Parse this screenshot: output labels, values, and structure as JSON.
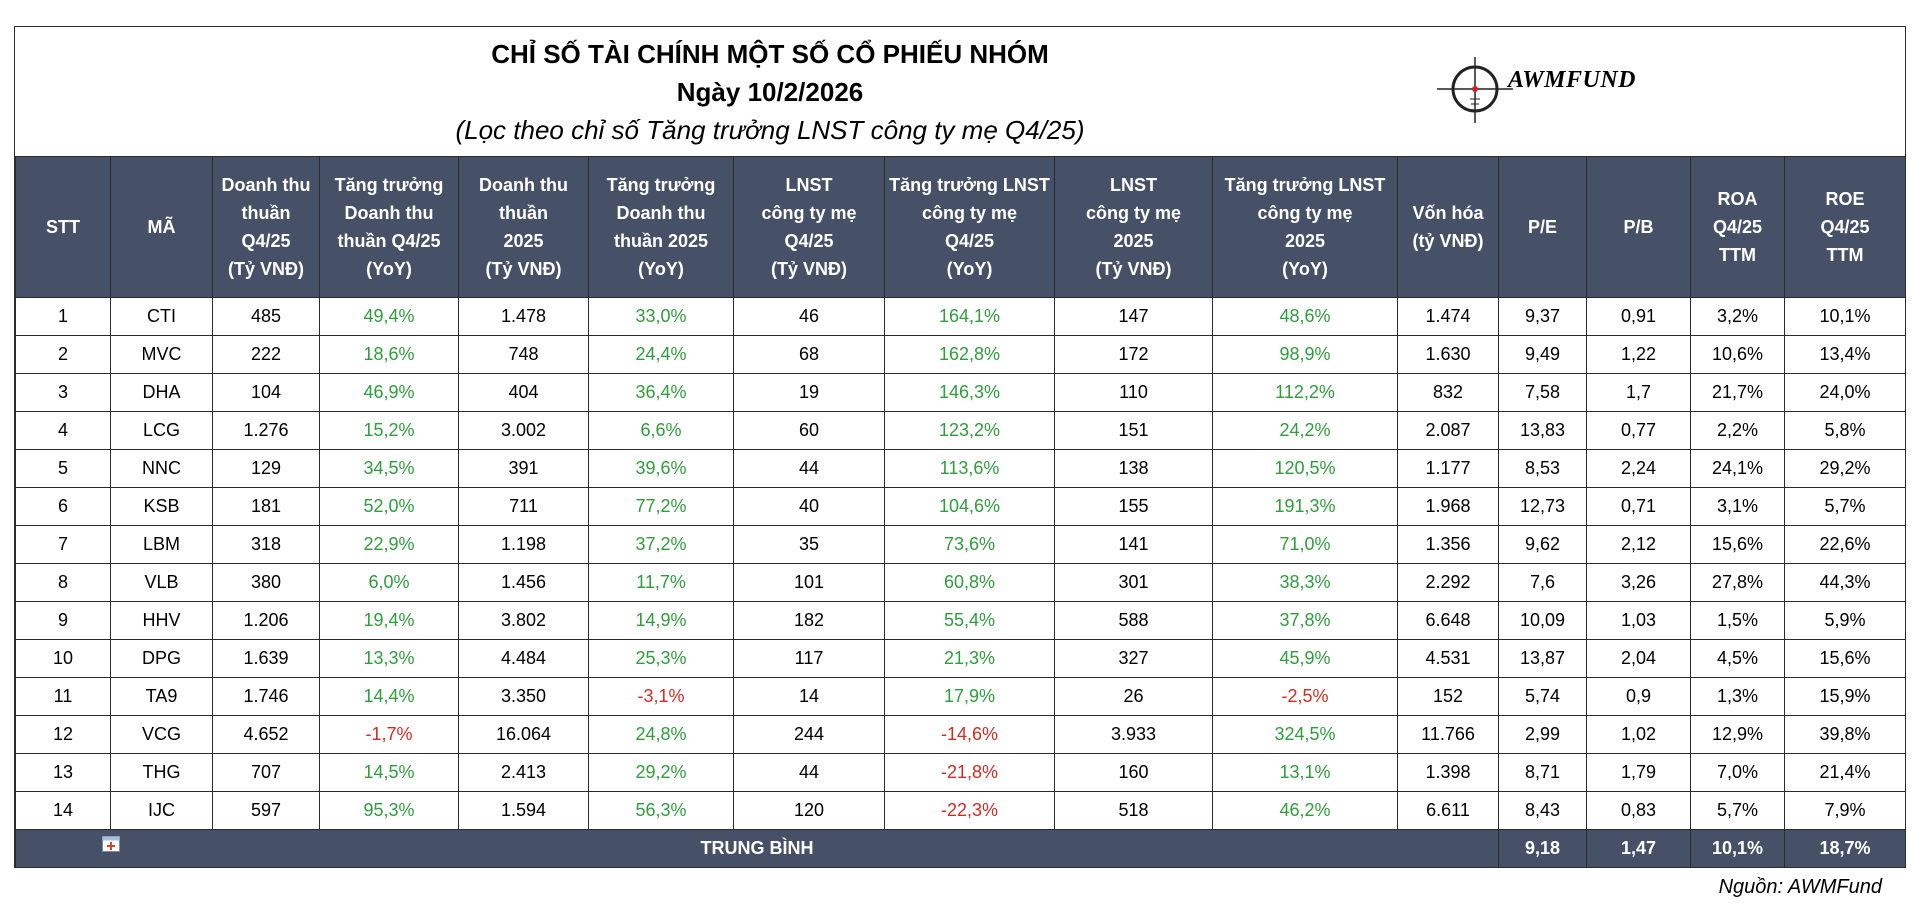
{
  "title": {
    "line1": "CHỈ SỐ TÀI CHÍNH MỘT SỐ CỔ PHIẾU NHÓM",
    "line2": "Ngày 10/2/2026",
    "line3": "(Lọc theo chỉ số Tăng trưởng LNST công ty mẹ Q4/25)"
  },
  "logo": {
    "text": "AWMFUND",
    "icon": "crosshair-icon"
  },
  "colors": {
    "header_bg": "#465066",
    "positive": "#2e9e3a",
    "negative": "#d02c20"
  },
  "columns": [
    {
      "key": "stt",
      "lines": [
        "STT"
      ]
    },
    {
      "key": "ma",
      "lines": [
        "MÃ"
      ]
    },
    {
      "key": "dt_q",
      "lines": [
        "Doanh thu",
        "thuần",
        "Q4/25",
        "(Tỷ VNĐ)"
      ]
    },
    {
      "key": "tt_dt_q",
      "lines": [
        "Tăng trưởng",
        "Doanh thu",
        "thuần Q4/25",
        "(YoY)"
      ]
    },
    {
      "key": "dt_y",
      "lines": [
        "Doanh thu",
        "thuần",
        "2025",
        "(Tỷ VNĐ)"
      ]
    },
    {
      "key": "tt_dt_y",
      "lines": [
        "Tăng trưởng",
        "Doanh thu",
        "thuần 2025",
        "(YoY)"
      ]
    },
    {
      "key": "ln_q",
      "lines": [
        "LNST",
        "công ty mẹ",
        "Q4/25",
        "(Tỷ VNĐ)"
      ]
    },
    {
      "key": "tt_ln_q",
      "lines": [
        "Tăng trưởng LNST",
        "công ty mẹ",
        "Q4/25",
        "(YoY)"
      ]
    },
    {
      "key": "ln_y",
      "lines": [
        "LNST",
        "công ty mẹ",
        "2025",
        "(Tỷ VNĐ)"
      ]
    },
    {
      "key": "tt_ln_y",
      "lines": [
        "Tăng trưởng LNST",
        "công ty mẹ",
        "2025",
        "(YoY)"
      ]
    },
    {
      "key": "vh",
      "lines": [
        "Vốn hóa",
        "(tỷ VNĐ)"
      ]
    },
    {
      "key": "pe",
      "lines": [
        "P/E"
      ]
    },
    {
      "key": "pb",
      "lines": [
        "P/B"
      ]
    },
    {
      "key": "roa",
      "lines": [
        "ROA",
        "Q4/25",
        "TTM"
      ]
    },
    {
      "key": "roe",
      "lines": [
        "ROE",
        "Q4/25",
        "TTM"
      ]
    }
  ],
  "growth_columns": [
    "tt_dt_q",
    "tt_dt_y",
    "tt_ln_q",
    "tt_ln_y"
  ],
  "rows": [
    [
      "1",
      "CTI",
      "485",
      "49,4%",
      "1.478",
      "33,0%",
      "46",
      "164,1%",
      "147",
      "48,6%",
      "1.474",
      "9,37",
      "0,91",
      "3,2%",
      "10,1%"
    ],
    [
      "2",
      "MVC",
      "222",
      "18,6%",
      "748",
      "24,4%",
      "68",
      "162,8%",
      "172",
      "98,9%",
      "1.630",
      "9,49",
      "1,22",
      "10,6%",
      "13,4%"
    ],
    [
      "3",
      "DHA",
      "104",
      "46,9%",
      "404",
      "36,4%",
      "19",
      "146,3%",
      "110",
      "112,2%",
      "832",
      "7,58",
      "1,7",
      "21,7%",
      "24,0%"
    ],
    [
      "4",
      "LCG",
      "1.276",
      "15,2%",
      "3.002",
      "6,6%",
      "60",
      "123,2%",
      "151",
      "24,2%",
      "2.087",
      "13,83",
      "0,77",
      "2,2%",
      "5,8%"
    ],
    [
      "5",
      "NNC",
      "129",
      "34,5%",
      "391",
      "39,6%",
      "44",
      "113,6%",
      "138",
      "120,5%",
      "1.177",
      "8,53",
      "2,24",
      "24,1%",
      "29,2%"
    ],
    [
      "6",
      "KSB",
      "181",
      "52,0%",
      "711",
      "77,2%",
      "40",
      "104,6%",
      "155",
      "191,3%",
      "1.968",
      "12,73",
      "0,71",
      "3,1%",
      "5,7%"
    ],
    [
      "7",
      "LBM",
      "318",
      "22,9%",
      "1.198",
      "37,2%",
      "35",
      "73,6%",
      "141",
      "71,0%",
      "1.356",
      "9,62",
      "2,12",
      "15,6%",
      "22,6%"
    ],
    [
      "8",
      "VLB",
      "380",
      "6,0%",
      "1.456",
      "11,7%",
      "101",
      "60,8%",
      "301",
      "38,3%",
      "2.292",
      "7,6",
      "3,26",
      "27,8%",
      "44,3%"
    ],
    [
      "9",
      "HHV",
      "1.206",
      "19,4%",
      "3.802",
      "14,9%",
      "182",
      "55,4%",
      "588",
      "37,8%",
      "6.648",
      "10,09",
      "1,03",
      "1,5%",
      "5,9%"
    ],
    [
      "10",
      "DPG",
      "1.639",
      "13,3%",
      "4.484",
      "25,3%",
      "117",
      "21,3%",
      "327",
      "45,9%",
      "4.531",
      "13,87",
      "2,04",
      "4,5%",
      "15,6%"
    ],
    [
      "11",
      "TA9",
      "1.746",
      "14,4%",
      "3.350",
      "-3,1%",
      "14",
      "17,9%",
      "26",
      "-2,5%",
      "152",
      "5,74",
      "0,9",
      "1,3%",
      "15,9%"
    ],
    [
      "12",
      "VCG",
      "4.652",
      "-1,7%",
      "16.064",
      "24,8%",
      "244",
      "-14,6%",
      "3.933",
      "324,5%",
      "11.766",
      "2,99",
      "1,02",
      "12,9%",
      "39,8%"
    ],
    [
      "13",
      "THG",
      "707",
      "14,5%",
      "2.413",
      "29,2%",
      "44",
      "-21,8%",
      "160",
      "13,1%",
      "1.398",
      "8,71",
      "1,79",
      "7,0%",
      "21,4%"
    ],
    [
      "14",
      "IJC",
      "597",
      "95,3%",
      "1.594",
      "56,3%",
      "120",
      "-22,3%",
      "518",
      "46,2%",
      "6.611",
      "8,43",
      "0,83",
      "5,7%",
      "7,9%"
    ]
  ],
  "average": {
    "label": "TRUNG BÌNH",
    "pe": "9,18",
    "pb": "1,47",
    "roa": "10,1%",
    "roe": "18,7%"
  },
  "source": "Nguồn: AWMFund"
}
